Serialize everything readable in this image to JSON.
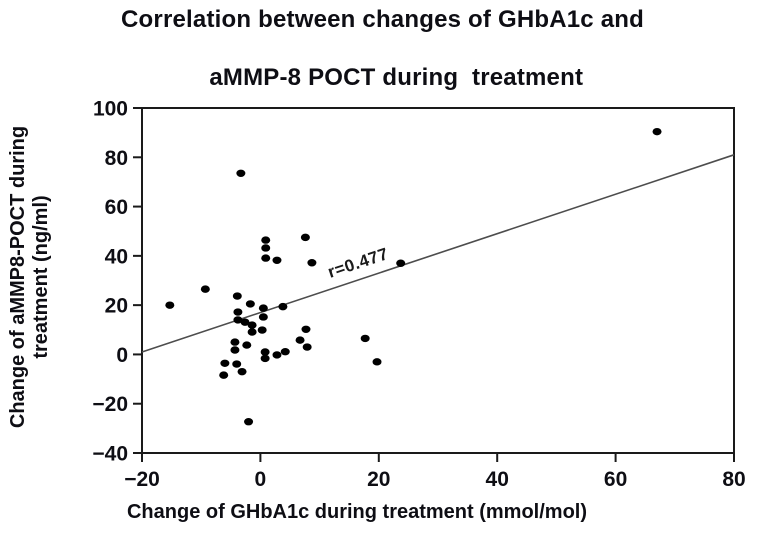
{
  "chart_data": {
    "type": "scatter",
    "title_line1": "Correlation between changes of GHbA1c and",
    "title_line2": "aMMP-8 POCT during  treatment",
    "xlabel": "Change of GHbA1c during treatment (mmol/mol)",
    "ylabel_line1": "Change of aMMP8-POCT during",
    "ylabel_line2": "treatment (ng/ml)",
    "xlim": [
      -20,
      80
    ],
    "ylim": [
      -40,
      100
    ],
    "xticks": [
      -20,
      0,
      20,
      40,
      60,
      80
    ],
    "yticks": [
      -40,
      -20,
      0,
      20,
      40,
      60,
      80,
      100
    ],
    "grid": false,
    "legend_position": "none",
    "point_color": "#000000",
    "trendline_color": "#4d4d4d",
    "frame_color": "#1a1a1a",
    "trendline": {
      "x1": -20,
      "y1": 1,
      "x2": 80,
      "y2": 81
    },
    "annotation": {
      "text": "r=0.477",
      "x": 16.8,
      "y": 35,
      "rotation_deg": -18.4
    },
    "points": [
      [
        67,
        90.4
      ],
      [
        -3.3,
        73.5
      ],
      [
        7.6,
        47.5
      ],
      [
        0.9,
        46.4
      ],
      [
        0.9,
        43.2
      ],
      [
        0.9,
        39.1
      ],
      [
        2.8,
        38.2
      ],
      [
        8.7,
        37.2
      ],
      [
        23.7,
        37.0
      ],
      [
        -15.3,
        20.0
      ],
      [
        -9.3,
        26.5
      ],
      [
        -3.9,
        23.7
      ],
      [
        -1.7,
        20.5
      ],
      [
        0.5,
        18.8
      ],
      [
        3.8,
        19.4
      ],
      [
        -3.8,
        17.2
      ],
      [
        0.5,
        15.2
      ],
      [
        -3.8,
        14.0
      ],
      [
        -2.6,
        13.1
      ],
      [
        -1.4,
        11.9
      ],
      [
        -1.4,
        9.1
      ],
      [
        0.3,
        9.9
      ],
      [
        7.7,
        10.2
      ],
      [
        17.7,
        6.5
      ],
      [
        19.7,
        -3.0
      ],
      [
        6.7,
        5.8
      ],
      [
        7.9,
        3.0
      ],
      [
        -4.3,
        5.0
      ],
      [
        -2.3,
        3.8
      ],
      [
        -4.3,
        1.8
      ],
      [
        0.8,
        1.0
      ],
      [
        2.8,
        -0.2
      ],
      [
        4.2,
        1.1
      ],
      [
        0.8,
        -1.6
      ],
      [
        -6.0,
        -3.6
      ],
      [
        -4.0,
        -3.9
      ],
      [
        -3.1,
        -7.0
      ],
      [
        -6.2,
        -8.4
      ],
      [
        -2.0,
        -27.3
      ]
    ]
  }
}
